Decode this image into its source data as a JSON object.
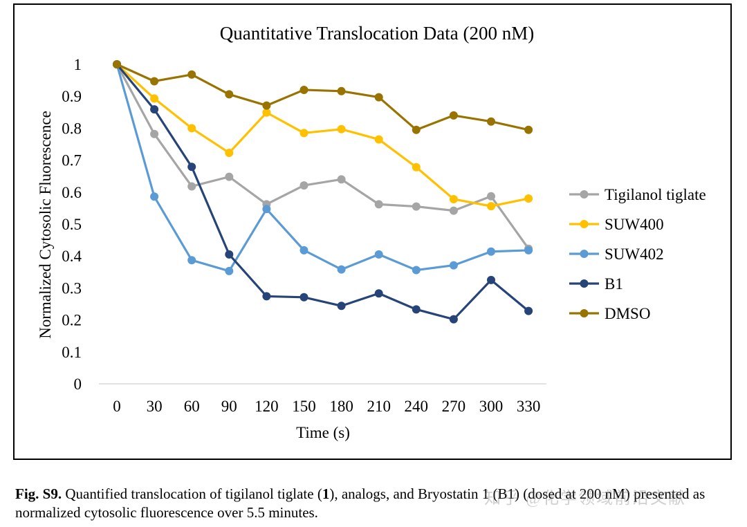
{
  "chart_data": {
    "type": "line",
    "title": "Quantitative Translocation Data (200 nM)",
    "xlabel": "Time (s)",
    "ylabel": "Normalized Cytosolic Fluorescence",
    "x": [
      0,
      30,
      60,
      90,
      120,
      150,
      180,
      210,
      240,
      270,
      300,
      330
    ],
    "x_tick_labels": [
      "0",
      "30",
      "60",
      "90",
      "120",
      "150",
      "180",
      "210",
      "240",
      "270",
      "300",
      "330"
    ],
    "y_tick_labels": [
      "0",
      "0.1",
      "0.2",
      "0.3",
      "0.4",
      "0.5",
      "0.6",
      "0.7",
      "0.8",
      "0.9",
      "1"
    ],
    "ylim": [
      0,
      1
    ],
    "grid": false,
    "legend_position": "right",
    "series": [
      {
        "name": "Tigilanol tiglate",
        "color": "#a5a5a5",
        "values": [
          1.0,
          0.782,
          0.618,
          0.648,
          0.562,
          0.621,
          0.64,
          0.562,
          0.555,
          0.542,
          0.587,
          0.423
        ]
      },
      {
        "name": "SUW400",
        "color": "#ffc000",
        "values": [
          1.0,
          0.893,
          0.8,
          0.723,
          0.849,
          0.785,
          0.797,
          0.765,
          0.678,
          0.578,
          0.556,
          0.58
        ]
      },
      {
        "name": "SUW402",
        "color": "#5b9bd5",
        "values": [
          1.0,
          0.586,
          0.387,
          0.353,
          0.547,
          0.418,
          0.358,
          0.405,
          0.356,
          0.371,
          0.414,
          0.418
        ]
      },
      {
        "name": "B1",
        "color": "#264478",
        "values": [
          1.0,
          0.859,
          0.679,
          0.405,
          0.274,
          0.271,
          0.244,
          0.283,
          0.233,
          0.202,
          0.325,
          0.228
        ]
      },
      {
        "name": "DMSO",
        "color": "#997300",
        "values": [
          1.0,
          0.947,
          0.968,
          0.906,
          0.871,
          0.92,
          0.916,
          0.897,
          0.795,
          0.84,
          0.821,
          0.795
        ]
      }
    ]
  },
  "caption": {
    "label": "Fig. S9.",
    "text_a": " Quantified translocation of tigilanol tiglate (",
    "compound_number": "1",
    "text_b": "), analogs, and Bryostatin 1 (B1) (dosed at 200 nM) presented as normalized cytosolic fluorescence over 5.5 minutes."
  },
  "watermark": "知乎 @化学领域前沿文献"
}
